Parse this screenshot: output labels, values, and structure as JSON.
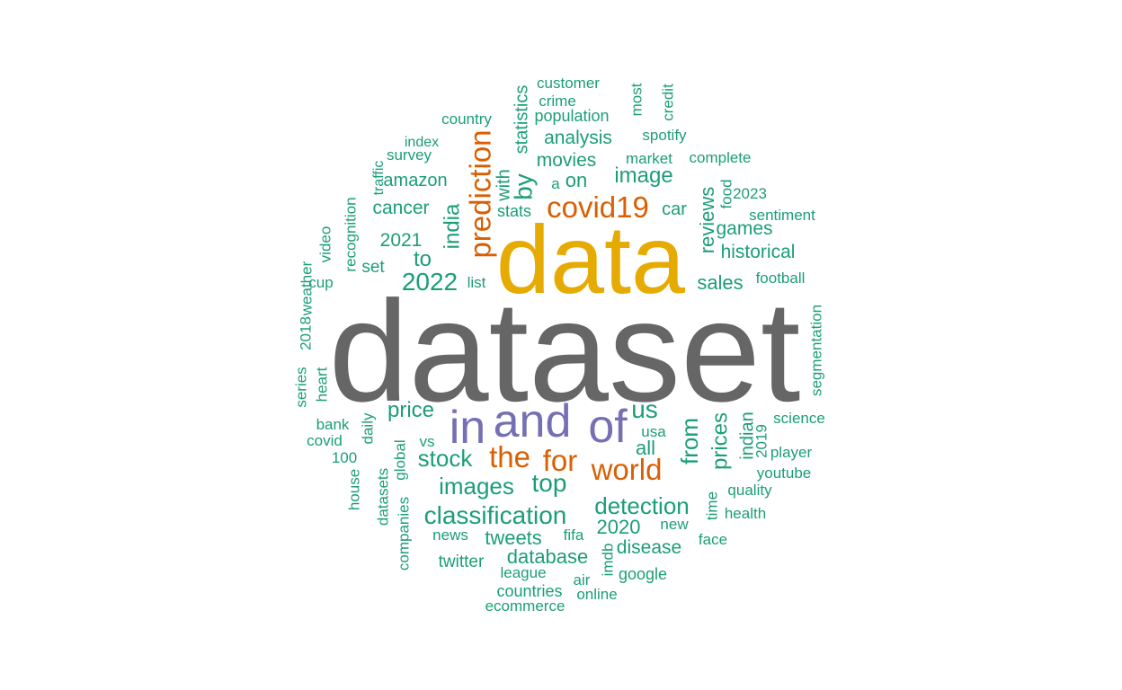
{
  "colors": {
    "dark_gray": "#666666",
    "mustard": "#e6ab02",
    "purple": "#7570b3",
    "orange": "#d95f02",
    "teal": "#1b9e77"
  },
  "words": [
    {
      "text": "dataset",
      "color": "dark_gray",
      "orientation": "horizontal"
    },
    {
      "text": "data",
      "color": "mustard",
      "orientation": "horizontal"
    },
    {
      "text": "in",
      "color": "purple",
      "orientation": "horizontal"
    },
    {
      "text": "and",
      "color": "purple",
      "orientation": "horizontal"
    },
    {
      "text": "of",
      "color": "purple",
      "orientation": "horizontal"
    },
    {
      "text": "covid19",
      "color": "orange",
      "orientation": "horizontal"
    },
    {
      "text": "prediction",
      "color": "orange",
      "orientation": "vertical"
    },
    {
      "text": "the",
      "color": "orange",
      "orientation": "horizontal"
    },
    {
      "text": "for",
      "color": "orange",
      "orientation": "horizontal"
    },
    {
      "text": "world",
      "color": "orange",
      "orientation": "horizontal"
    },
    {
      "text": "customer",
      "color": "teal",
      "orientation": "horizontal"
    },
    {
      "text": "statistics",
      "color": "teal",
      "orientation": "vertical"
    },
    {
      "text": "most",
      "color": "teal",
      "orientation": "vertical"
    },
    {
      "text": "credit",
      "color": "teal",
      "orientation": "vertical"
    },
    {
      "text": "crime",
      "color": "teal",
      "orientation": "horizontal"
    },
    {
      "text": "country",
      "color": "teal",
      "orientation": "horizontal"
    },
    {
      "text": "population",
      "color": "teal",
      "orientation": "horizontal"
    },
    {
      "text": "analysis",
      "color": "teal",
      "orientation": "horizontal"
    },
    {
      "text": "spotify",
      "color": "teal",
      "orientation": "horizontal"
    },
    {
      "text": "index",
      "color": "teal",
      "orientation": "horizontal"
    },
    {
      "text": "survey",
      "color": "teal",
      "orientation": "horizontal"
    },
    {
      "text": "movies",
      "color": "teal",
      "orientation": "horizontal"
    },
    {
      "text": "market",
      "color": "teal",
      "orientation": "horizontal"
    },
    {
      "text": "complete",
      "color": "teal",
      "orientation": "horizontal"
    },
    {
      "text": "traffic",
      "color": "teal",
      "orientation": "vertical"
    },
    {
      "text": "amazon",
      "color": "teal",
      "orientation": "horizontal"
    },
    {
      "text": "with",
      "color": "teal",
      "orientation": "vertical"
    },
    {
      "text": "by",
      "color": "teal",
      "orientation": "vertical"
    },
    {
      "text": "a",
      "color": "teal",
      "orientation": "horizontal"
    },
    {
      "text": "on",
      "color": "teal",
      "orientation": "horizontal"
    },
    {
      "text": "image",
      "color": "teal",
      "orientation": "horizontal"
    },
    {
      "text": "reviews",
      "color": "teal",
      "orientation": "vertical"
    },
    {
      "text": "food",
      "color": "teal",
      "orientation": "vertical"
    },
    {
      "text": "2023",
      "color": "teal",
      "orientation": "horizontal"
    },
    {
      "text": "recognition",
      "color": "teal",
      "orientation": "vertical"
    },
    {
      "text": "cancer",
      "color": "teal",
      "orientation": "horizontal"
    },
    {
      "text": "india",
      "color": "teal",
      "orientation": "vertical"
    },
    {
      "text": "stats",
      "color": "teal",
      "orientation": "horizontal"
    },
    {
      "text": "car",
      "color": "teal",
      "orientation": "horizontal"
    },
    {
      "text": "sentiment",
      "color": "teal",
      "orientation": "horizontal"
    },
    {
      "text": "video",
      "color": "teal",
      "orientation": "vertical"
    },
    {
      "text": "games",
      "color": "teal",
      "orientation": "horizontal"
    },
    {
      "text": "2021",
      "color": "teal",
      "orientation": "horizontal"
    },
    {
      "text": "weather",
      "color": "teal",
      "orientation": "vertical"
    },
    {
      "text": "to",
      "color": "teal",
      "orientation": "horizontal"
    },
    {
      "text": "historical",
      "color": "teal",
      "orientation": "horizontal"
    },
    {
      "text": "set",
      "color": "teal",
      "orientation": "horizontal"
    },
    {
      "text": "cup",
      "color": "teal",
      "orientation": "horizontal"
    },
    {
      "text": "2022",
      "color": "teal",
      "orientation": "horizontal"
    },
    {
      "text": "list",
      "color": "teal",
      "orientation": "horizontal"
    },
    {
      "text": "sales",
      "color": "teal",
      "orientation": "horizontal"
    },
    {
      "text": "football",
      "color": "teal",
      "orientation": "horizontal"
    },
    {
      "text": "2018",
      "color": "teal",
      "orientation": "vertical"
    },
    {
      "text": "segmentation",
      "color": "teal",
      "orientation": "vertical"
    },
    {
      "text": "series",
      "color": "teal",
      "orientation": "vertical"
    },
    {
      "text": "heart",
      "color": "teal",
      "orientation": "vertical"
    },
    {
      "text": "price",
      "color": "teal",
      "orientation": "horizontal"
    },
    {
      "text": "us",
      "color": "teal",
      "orientation": "horizontal"
    },
    {
      "text": "science",
      "color": "teal",
      "orientation": "horizontal"
    },
    {
      "text": "bank",
      "color": "teal",
      "orientation": "horizontal"
    },
    {
      "text": "daily",
      "color": "teal",
      "orientation": "vertical"
    },
    {
      "text": "from",
      "color": "teal",
      "orientation": "vertical"
    },
    {
      "text": "prices",
      "color": "teal",
      "orientation": "vertical"
    },
    {
      "text": "indian",
      "color": "teal",
      "orientation": "vertical"
    },
    {
      "text": "covid",
      "color": "teal",
      "orientation": "horizontal"
    },
    {
      "text": "vs",
      "color": "teal",
      "orientation": "horizontal"
    },
    {
      "text": "usa",
      "color": "teal",
      "orientation": "horizontal"
    },
    {
      "text": "2019",
      "color": "teal",
      "orientation": "vertical"
    },
    {
      "text": "global",
      "color": "teal",
      "orientation": "vertical"
    },
    {
      "text": "all",
      "color": "teal",
      "orientation": "horizontal"
    },
    {
      "text": "player",
      "color": "teal",
      "orientation": "horizontal"
    },
    {
      "text": "100",
      "color": "teal",
      "orientation": "horizontal"
    },
    {
      "text": "stock",
      "color": "teal",
      "orientation": "horizontal"
    },
    {
      "text": "youtube",
      "color": "teal",
      "orientation": "horizontal"
    },
    {
      "text": "house",
      "color": "teal",
      "orientation": "vertical"
    },
    {
      "text": "images",
      "color": "teal",
      "orientation": "horizontal"
    },
    {
      "text": "top",
      "color": "teal",
      "orientation": "horizontal"
    },
    {
      "text": "time",
      "color": "teal",
      "orientation": "vertical"
    },
    {
      "text": "quality",
      "color": "teal",
      "orientation": "horizontal"
    },
    {
      "text": "datasets",
      "color": "teal",
      "orientation": "vertical"
    },
    {
      "text": "detection",
      "color": "teal",
      "orientation": "horizontal"
    },
    {
      "text": "classification",
      "color": "teal",
      "orientation": "horizontal"
    },
    {
      "text": "health",
      "color": "teal",
      "orientation": "horizontal"
    },
    {
      "text": "new",
      "color": "teal",
      "orientation": "horizontal"
    },
    {
      "text": "companies",
      "color": "teal",
      "orientation": "vertical"
    },
    {
      "text": "2020",
      "color": "teal",
      "orientation": "horizontal"
    },
    {
      "text": "news",
      "color": "teal",
      "orientation": "horizontal"
    },
    {
      "text": "tweets",
      "color": "teal",
      "orientation": "horizontal"
    },
    {
      "text": "fifa",
      "color": "teal",
      "orientation": "horizontal"
    },
    {
      "text": "face",
      "color": "teal",
      "orientation": "horizontal"
    },
    {
      "text": "disease",
      "color": "teal",
      "orientation": "horizontal"
    },
    {
      "text": "imdb",
      "color": "teal",
      "orientation": "vertical"
    },
    {
      "text": "database",
      "color": "teal",
      "orientation": "horizontal"
    },
    {
      "text": "twitter",
      "color": "teal",
      "orientation": "horizontal"
    },
    {
      "text": "google",
      "color": "teal",
      "orientation": "horizontal"
    },
    {
      "text": "league",
      "color": "teal",
      "orientation": "horizontal"
    },
    {
      "text": "air",
      "color": "teal",
      "orientation": "horizontal"
    },
    {
      "text": "countries",
      "color": "teal",
      "orientation": "horizontal"
    },
    {
      "text": "online",
      "color": "teal",
      "orientation": "horizontal"
    },
    {
      "text": "ecommerce",
      "color": "teal",
      "orientation": "horizontal"
    }
  ]
}
